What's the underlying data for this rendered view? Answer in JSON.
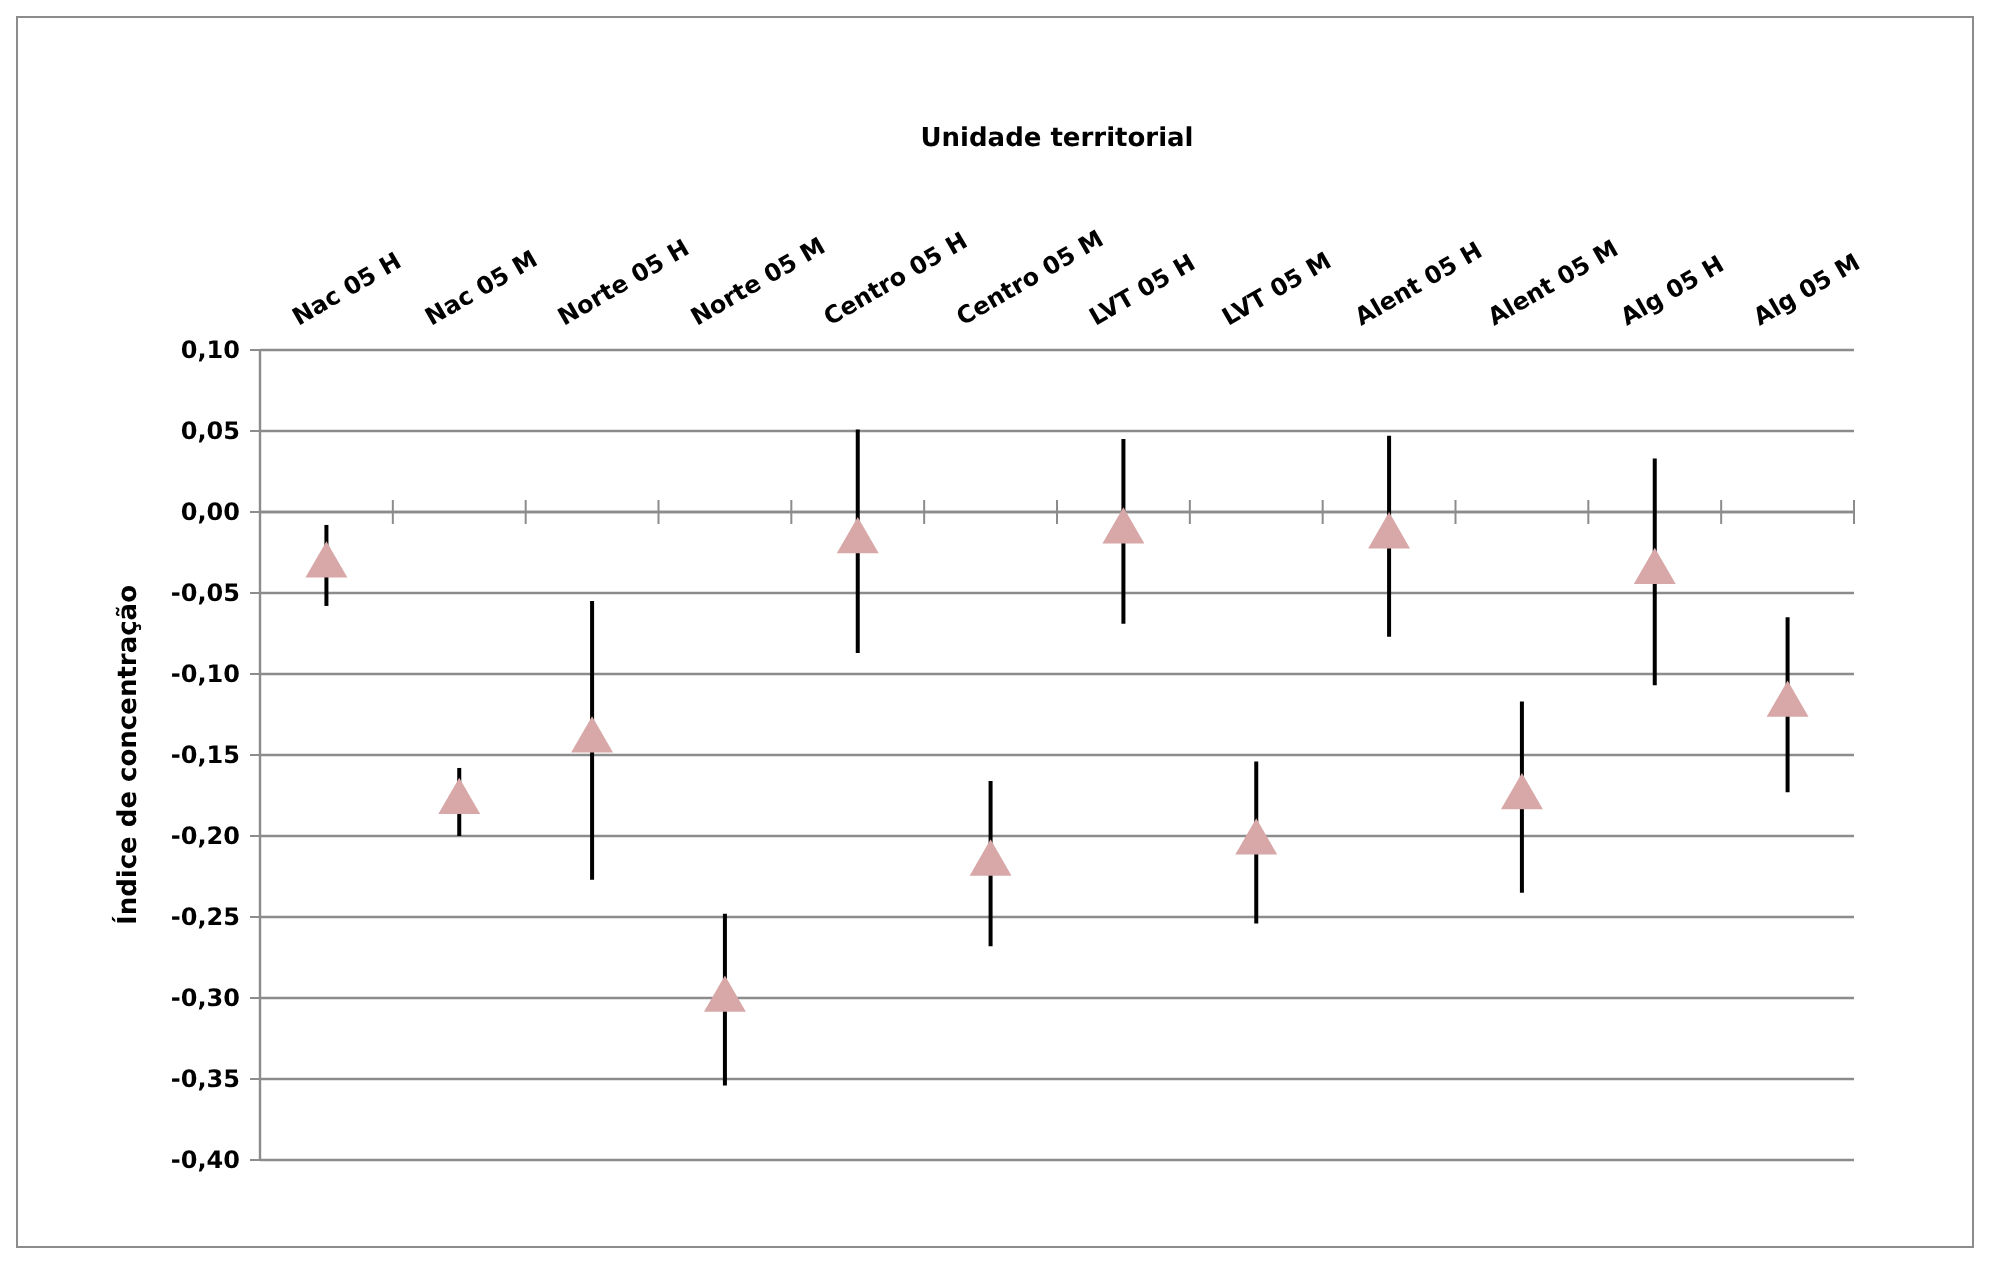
{
  "chart_data": {
    "type": "scatter",
    "xlabel": "Unidade territorial",
    "ylabel": "Índice de concentração",
    "categories": [
      "Nac 05 H",
      "Nac 05 M",
      "Norte 05 H",
      "Norte 05 M",
      "Centro 05 H",
      "Centro 05 M",
      "LVT 05 H",
      "LVT 05 M",
      "Alent 05 H",
      "Alent 05 M",
      "Alg 05 H",
      "Alg 05 M"
    ],
    "values": [
      -0.033,
      -0.179,
      -0.141,
      -0.301,
      -0.018,
      -0.217,
      -0.012,
      -0.204,
      -0.015,
      -0.176,
      -0.037,
      -0.119
    ],
    "errors": [
      0.025,
      0.021,
      0.086,
      0.053,
      0.069,
      0.051,
      0.057,
      0.05,
      0.062,
      0.059,
      0.07,
      0.054
    ],
    "color": "#d8a7a7",
    "marker": "triangle",
    "grid": "y",
    "ylim": [
      -0.4,
      0.1
    ],
    "yticks": [
      {
        "value": -0.4,
        "label": "-0,40"
      },
      {
        "value": -0.35,
        "label": "-0,35"
      },
      {
        "value": -0.3,
        "label": "-0,30"
      },
      {
        "value": -0.25,
        "label": "-0,25"
      },
      {
        "value": -0.2,
        "label": "-0,20"
      },
      {
        "value": -0.15,
        "label": "-0,15"
      },
      {
        "value": -0.1,
        "label": "-0,10"
      },
      {
        "value": -0.05,
        "label": "-0,05"
      },
      {
        "value": 0,
        "label": "0,00"
      },
      {
        "value": 0.05,
        "label": "0,05"
      },
      {
        "value": 0.1,
        "label": "0,10"
      }
    ]
  }
}
